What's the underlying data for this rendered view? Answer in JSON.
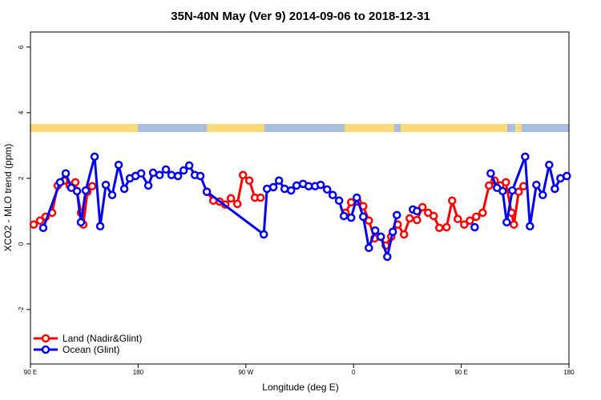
{
  "chart_data": {
    "type": "line",
    "title": "35N-40N May (Ver 9)   2014-09-06 to 2018-12-31",
    "x_label": "Longitude (deg E)",
    "y_label": "XCO2 - MLO trend (ppm)",
    "xlim": [
      90,
      540
    ],
    "ylim": [
      -3.66,
      6.46
    ],
    "xticks": [
      {
        "value": 90,
        "label": "90 E"
      },
      180,
      {
        "value": 270,
        "label": "90 W"
      },
      {
        "value": 360,
        "label": "0"
      },
      {
        "value": 450,
        "label": "90 E"
      },
      {
        "value": 540,
        "label": "180"
      }
    ],
    "yticks": [
      -2,
      0,
      2,
      4,
      6
    ],
    "legend": "bottom-left",
    "series": [
      {
        "name": "Land (Nadir&Glint)",
        "color": "#ff0000",
        "x": [
          92.7,
          98.0,
          102.7,
          108.1,
          112.8,
          118.1,
          122.8,
          127.5,
          132.2,
          134.2,
          137.6,
          141.6,
          null,
          237.4,
          242.8,
          248.1,
          252.8,
          257.5,
          262.9,
          267.6,
          272.9,
          277.6,
          282.3,
          null,
          353.3,
          358.0,
          363.4,
          368.1,
          372.8,
          377.5,
          382.2,
          386.9,
          391.5,
          396.9,
          402.2,
          406.9,
          413.0,
          417.6,
          422.3,
          427.0,
          431.7,
          437.7,
          442.4,
          447.1,
          452.5,
          457.2,
          462.5,
          467.9,
          473.2,
          477.9,
          482.6,
          487.3,
          492.0,
          494.0,
          498.0,
          502.0
        ],
        "values": [
          0.59,
          0.71,
          0.83,
          0.95,
          1.78,
          1.93,
          1.78,
          1.88,
          0.95,
          0.59,
          1.59,
          1.76,
          null,
          1.59,
          1.32,
          1.29,
          1.2,
          1.39,
          1.22,
          2.1,
          1.93,
          1.41,
          1.41,
          null,
          0.95,
          1.27,
          1.29,
          1.15,
          0.71,
          0.17,
          0.22,
          -0.05,
          0.22,
          0.59,
          0.29,
          0.78,
          0.73,
          1.12,
          0.95,
          0.85,
          0.49,
          0.51,
          1.32,
          0.76,
          0.59,
          0.71,
          0.83,
          0.95,
          1.78,
          1.93,
          1.78,
          1.88,
          0.95,
          0.59,
          1.59,
          1.76
        ]
      },
      {
        "name": "Ocean (Glint)",
        "color": "#0000ee",
        "x": [
          100.7,
          114.8,
          119.5,
          124.2,
          128.9,
          132.2,
          136.2,
          143.6,
          148.3,
          153.0,
          158.3,
          163.7,
          168.4,
          173.1,
          177.8,
          182.5,
          188.5,
          192.5,
          197.9,
          203.2,
          207.9,
          213.3,
          218.0,
          222.7,
          227.4,
          232.0,
          237.4,
          285.0,
          287.7,
          293.0,
          297.7,
          302.4,
          307.8,
          312.4,
          317.8,
          322.5,
          327.9,
          332.5,
          337.9,
          342.6,
          347.9,
          351.9,
          358.0,
          362.7,
          368.1,
          372.8,
          378.1,
          382.8,
          388.2,
          392.8,
          396.2,
          null,
          409.6,
          413.0,
          null,
          461.2,
          null,
          474.6,
          479.9,
          484.6,
          488.0,
          492.7,
          503.4,
          507.4,
          512.8,
          518.1,
          523.5,
          528.2,
          532.9,
          538.2
        ],
        "values": [
          0.49,
          1.88,
          2.15,
          1.71,
          1.61,
          0.66,
          1.63,
          2.66,
          0.54,
          1.8,
          1.49,
          2.41,
          1.68,
          2.0,
          2.07,
          2.15,
          1.78,
          2.17,
          2.1,
          2.27,
          2.1,
          2.07,
          2.24,
          2.39,
          2.1,
          2.07,
          1.59,
          0.29,
          1.68,
          1.73,
          1.93,
          1.68,
          1.63,
          1.78,
          1.83,
          1.76,
          1.76,
          1.8,
          1.66,
          1.49,
          1.32,
          0.85,
          0.8,
          1.41,
          0.83,
          -0.12,
          0.41,
          0.22,
          -0.39,
          0.37,
          0.88,
          null,
          1.05,
          1.0,
          null,
          0.51,
          null,
          2.15,
          1.71,
          1.61,
          0.66,
          1.63,
          2.66,
          0.54,
          1.8,
          1.49,
          2.41,
          1.68,
          2.0,
          2.07
        ]
      }
    ]
  }
}
